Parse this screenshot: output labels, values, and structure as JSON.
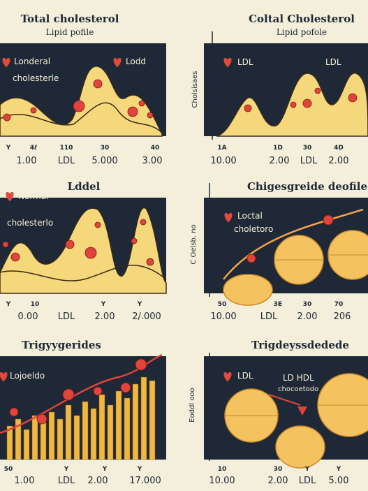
{
  "panels": [
    {
      "title": "Total cholesterol",
      "subtitle": "Lipid pofile",
      "labels": [
        "Londeral",
        "cholesterle",
        "Lodd"
      ],
      "ticks": [
        "Y",
        "4ℓ",
        "110",
        "30",
        "40"
      ],
      "axis_labels": [
        "1.00",
        "LDL",
        "5.000",
        "3.00"
      ]
    },
    {
      "title": "Coltal Cholesterol",
      "subtitle": "Lipid pofole",
      "y_label": "Cholsisaes",
      "labels": [
        "LDL",
        "LDL"
      ],
      "ticks": [
        "1A",
        "1D",
        "30",
        "4D"
      ],
      "axis_labels": [
        "10.00",
        "2.00",
        "LDL",
        "2.00"
      ]
    },
    {
      "title": "Lddel",
      "labels": [
        "Normal",
        "cholesterlo"
      ],
      "ticks": [
        "Y",
        "10",
        "Y",
        "Y"
      ],
      "axis_labels": [
        "0.00",
        "LDL",
        "2.00",
        "2/.000"
      ]
    },
    {
      "title": "Chigesgreide deofile",
      "y_label": "C Oelsb. no",
      "labels": [
        "Loctal",
        "choletoro"
      ],
      "ticks": [
        "50",
        "3E",
        "30",
        "70"
      ],
      "axis_labels": [
        "10.00",
        "LDL",
        "2.00",
        "206"
      ]
    },
    {
      "title": "Trigyygerides",
      "labels": [
        "Lojoeldo"
      ],
      "ticks": [
        "50",
        "Y",
        "Y",
        "Y"
      ],
      "axis_labels": [
        "1.00",
        "LDL",
        "2.00",
        "17.000"
      ]
    },
    {
      "title": "Trigdeyssdedede",
      "y_label": "Eoddl ooo",
      "labels": [
        "LDL",
        "LD HDL",
        "chocoetodo"
      ],
      "ticks": [
        "10",
        "30",
        "Y",
        "Y"
      ],
      "axis_labels": [
        "10.00",
        "2.00",
        "LDL",
        "5.00"
      ]
    }
  ]
}
